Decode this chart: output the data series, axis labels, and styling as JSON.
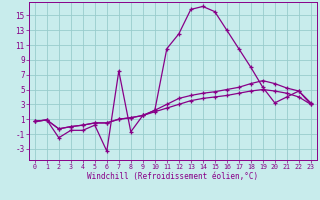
{
  "xlabel": "Windchill (Refroidissement éolien,°C)",
  "bg_color": "#c8ecec",
  "line_color": "#880088",
  "grid_color": "#99cccc",
  "x_ticks": [
    0,
    1,
    2,
    3,
    4,
    5,
    6,
    7,
    8,
    9,
    10,
    11,
    12,
    13,
    14,
    15,
    16,
    17,
    18,
    19,
    20,
    21,
    22,
    23
  ],
  "y_ticks": [
    -3,
    -1,
    1,
    3,
    5,
    7,
    9,
    11,
    13,
    15
  ],
  "ylim": [
    -4.5,
    16.8
  ],
  "xlim": [
    -0.5,
    23.5
  ],
  "series": [
    [
      0.7,
      0.9,
      -1.5,
      -0.5,
      -0.5,
      0.2,
      -3.3,
      7.5,
      -0.7,
      1.5,
      2.2,
      10.5,
      12.5,
      15.8,
      16.2,
      15.5,
      13.0,
      10.5,
      8.0,
      5.3,
      3.2,
      4.0,
      4.8,
      3.0
    ],
    [
      0.7,
      0.9,
      -0.3,
      0.0,
      0.2,
      0.5,
      0.5,
      1.0,
      1.2,
      1.5,
      2.0,
      2.5,
      3.0,
      3.5,
      3.8,
      4.0,
      4.2,
      4.5,
      4.8,
      5.0,
      4.8,
      4.5,
      4.0,
      3.0
    ],
    [
      0.7,
      0.9,
      -0.3,
      0.0,
      0.2,
      0.5,
      0.5,
      1.0,
      1.2,
      1.5,
      2.2,
      3.0,
      3.8,
      4.2,
      4.5,
      4.7,
      5.0,
      5.3,
      5.8,
      6.2,
      5.8,
      5.2,
      4.8,
      3.2
    ]
  ]
}
